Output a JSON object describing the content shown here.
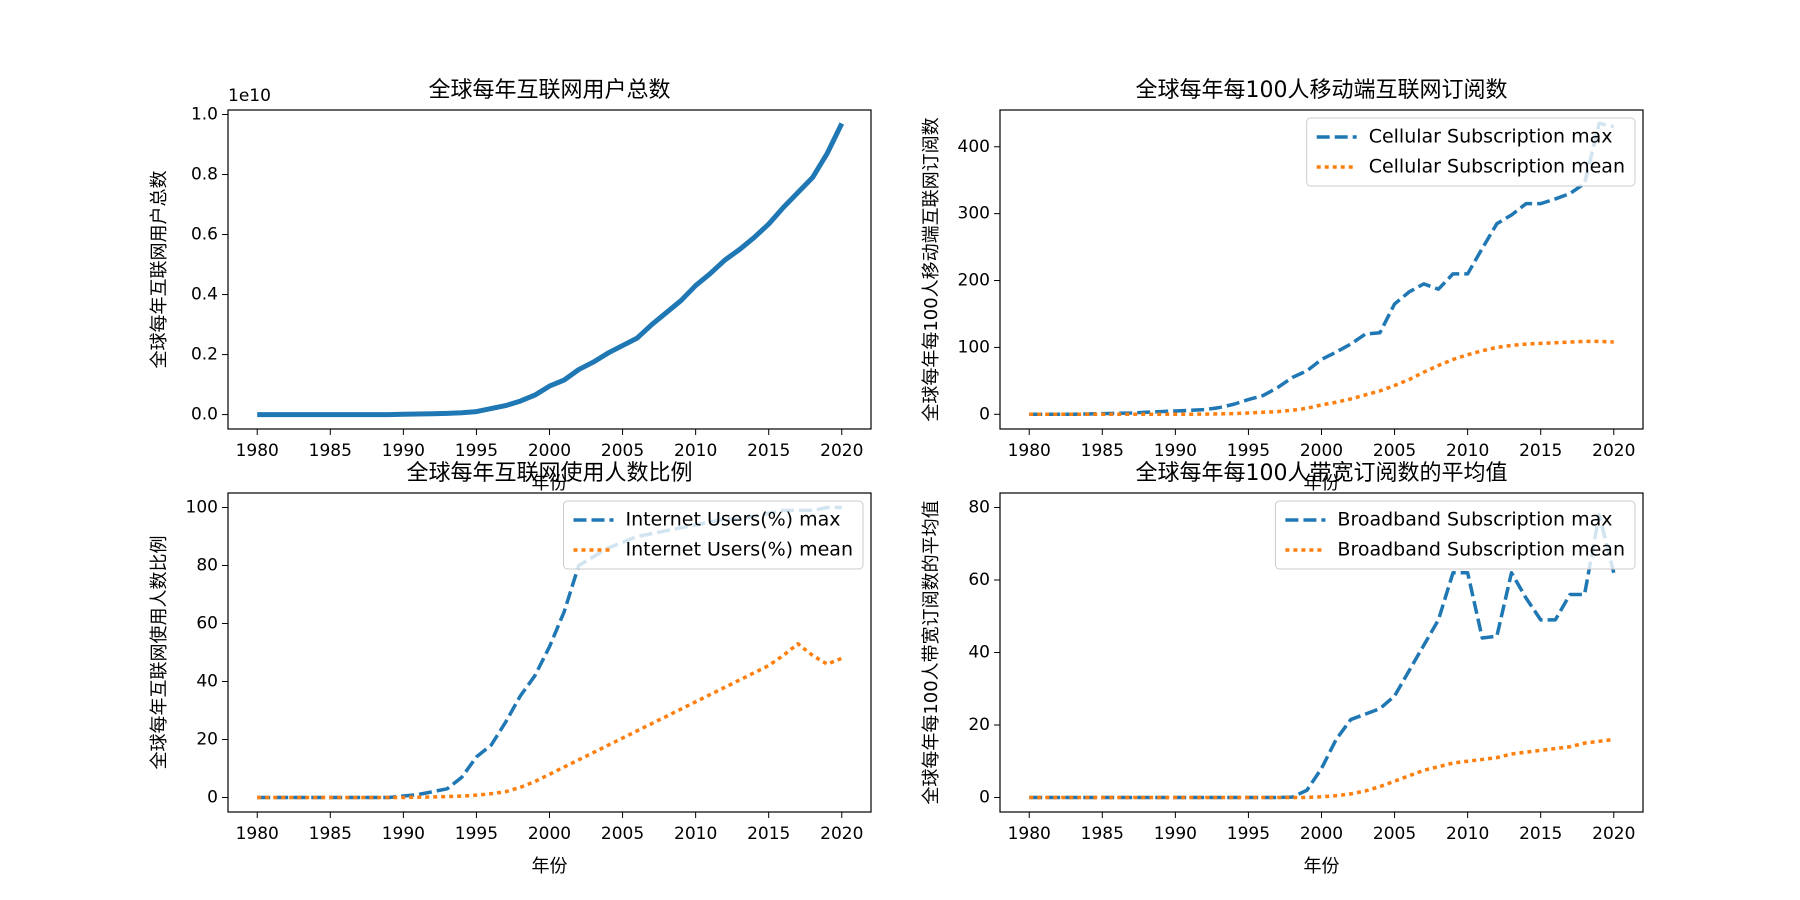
{
  "chart_data": [
    {
      "type": "line",
      "title": "全球每年互联网用户总数",
      "ylabel": "全球每年互联网用户总数",
      "xlabel": "年份",
      "offset_label": "1e10",
      "x": [
        1980,
        1981,
        1982,
        1983,
        1984,
        1985,
        1986,
        1987,
        1988,
        1989,
        1990,
        1991,
        1992,
        1993,
        1994,
        1995,
        1996,
        1997,
        1998,
        1999,
        2000,
        2001,
        2002,
        2003,
        2004,
        2005,
        2006,
        2007,
        2008,
        2009,
        2010,
        2011,
        2012,
        2013,
        2014,
        2015,
        2016,
        2017,
        2018,
        2019,
        2020
      ],
      "series": [
        {
          "color": "#1f77b4",
          "style": "solid",
          "values": [
            0,
            0,
            0,
            0,
            0,
            0,
            0,
            0,
            0,
            0,
            0.001,
            0.002,
            0.003,
            0.004,
            0.006,
            0.01,
            0.02,
            0.03,
            0.045,
            0.065,
            0.095,
            0.115,
            0.15,
            0.175,
            0.205,
            0.23,
            0.255,
            0.3,
            0.34,
            0.38,
            0.43,
            0.47,
            0.515,
            0.55,
            0.59,
            0.635,
            0.69,
            0.74,
            0.79,
            0.87,
            0.97
          ]
        }
      ],
      "xlim": [
        1978,
        2022
      ],
      "xticks": [
        1980,
        1985,
        1990,
        1995,
        2000,
        2005,
        2010,
        2015,
        2020
      ],
      "ylim": [
        -0.048,
        1.015
      ],
      "yticks": [
        {
          "value": 0,
          "label": "0.0"
        },
        0.2,
        0.4,
        0.6,
        0.8,
        {
          "value": 1,
          "label": "1.0"
        }
      ]
    },
    {
      "type": "line",
      "title": "全球每年每100人移动端互联网订阅数",
      "ylabel": "全球每年每100人移动端互联网订阅数",
      "xlabel": "年份",
      "legend": "upper right",
      "x": [
        1980,
        1981,
        1982,
        1983,
        1984,
        1985,
        1986,
        1987,
        1988,
        1989,
        1990,
        1991,
        1992,
        1993,
        1994,
        1995,
        1996,
        1997,
        1998,
        1999,
        2000,
        2001,
        2002,
        2003,
        2004,
        2005,
        2006,
        2007,
        2008,
        2009,
        2010,
        2011,
        2012,
        2013,
        2014,
        2015,
        2016,
        2017,
        2018,
        2019,
        2020
      ],
      "series": [
        {
          "name": "Cellular Subscription max",
          "color": "#1f77b4",
          "style": "dashed",
          "values": [
            0,
            0,
            0,
            0,
            0.5,
            1,
            1.5,
            2,
            3,
            4,
            5,
            6,
            7,
            10,
            15,
            22,
            28,
            40,
            55,
            65,
            82,
            93,
            105,
            120,
            122,
            165,
            183,
            195,
            187,
            210,
            210,
            248,
            285,
            298,
            315,
            315,
            322,
            330,
            345,
            435,
            430
          ]
        },
        {
          "name": "Cellular Subscription mean",
          "color": "#ff7f0e",
          "style": "dotted",
          "values": [
            0,
            0,
            0,
            0,
            0,
            0,
            0,
            0,
            0,
            0,
            0,
            0.1,
            0.3,
            0.6,
            1,
            2,
            3,
            4,
            6,
            9,
            14,
            18,
            23,
            29,
            35,
            43,
            52,
            63,
            73,
            82,
            89,
            95,
            100,
            103,
            105,
            106,
            107,
            108,
            109,
            109,
            108
          ]
        }
      ],
      "xlim": [
        1978,
        2022
      ],
      "xticks": [
        1980,
        1985,
        1990,
        1995,
        2000,
        2005,
        2010,
        2015,
        2020
      ],
      "ylim": [
        -22,
        455
      ],
      "yticks": [
        0,
        100,
        200,
        300,
        400
      ]
    },
    {
      "type": "line",
      "title": "全球每年互联网使用人数比例",
      "ylabel": "全球每年互联网使用人数比例",
      "xlabel": "年份",
      "legend": "upper right",
      "x": [
        1980,
        1981,
        1982,
        1983,
        1984,
        1985,
        1986,
        1987,
        1988,
        1989,
        1990,
        1991,
        1992,
        1993,
        1994,
        1995,
        1996,
        1997,
        1998,
        1999,
        2000,
        2001,
        2002,
        2003,
        2004,
        2005,
        2006,
        2007,
        2008,
        2009,
        2010,
        2011,
        2012,
        2013,
        2014,
        2015,
        2016,
        2017,
        2018,
        2019,
        2020
      ],
      "series": [
        {
          "name": "Internet Users(%) max",
          "color": "#1f77b4",
          "style": "dashed",
          "values": [
            0,
            0,
            0,
            0,
            0,
            0,
            0,
            0,
            0,
            0,
            0.5,
            1,
            2,
            3,
            7,
            14,
            18,
            26,
            35,
            42,
            52,
            64,
            80,
            83,
            86,
            88,
            90,
            91,
            92,
            93,
            94,
            95,
            96,
            96,
            97,
            98,
            99,
            99,
            99,
            100,
            100
          ]
        },
        {
          "name": "Internet Users(%) mean",
          "color": "#ff7f0e",
          "style": "dotted",
          "values": [
            0,
            0,
            0,
            0,
            0,
            0,
            0,
            0,
            0,
            0,
            0,
            0.1,
            0.2,
            0.3,
            0.5,
            0.8,
            1.3,
            2,
            3.5,
            5.5,
            8,
            10.5,
            13,
            15.5,
            18,
            20.5,
            23,
            25.5,
            28,
            30.5,
            33,
            35.5,
            38,
            40.5,
            43,
            45.5,
            49,
            53,
            49,
            46,
            48
          ]
        }
      ],
      "xlim": [
        1978,
        2022
      ],
      "xticks": [
        1980,
        1985,
        1990,
        1995,
        2000,
        2005,
        2010,
        2015,
        2020
      ],
      "ylim": [
        -5,
        105
      ],
      "yticks": [
        0,
        20,
        40,
        60,
        80,
        100
      ]
    },
    {
      "type": "line",
      "title": "全球每年每100人带宽订阅数的平均值",
      "ylabel": "全球每年每100人带宽订阅数的平均值",
      "xlabel": "年份",
      "legend": "upper right",
      "x": [
        1980,
        1981,
        1982,
        1983,
        1984,
        1985,
        1986,
        1987,
        1988,
        1989,
        1990,
        1991,
        1992,
        1993,
        1994,
        1995,
        1996,
        1997,
        1998,
        1999,
        2000,
        2001,
        2002,
        2003,
        2004,
        2005,
        2006,
        2007,
        2008,
        2009,
        2010,
        2011,
        2012,
        2013,
        2014,
        2015,
        2016,
        2017,
        2018,
        2019,
        2020
      ],
      "series": [
        {
          "name": "Broadband Subscription max",
          "color": "#1f77b4",
          "style": "dashed",
          "values": [
            0,
            0,
            0,
            0,
            0,
            0,
            0,
            0,
            0,
            0,
            0,
            0,
            0,
            0,
            0,
            0,
            0,
            0,
            0.1,
            2,
            8,
            16,
            21.5,
            23,
            24.5,
            28,
            35,
            42,
            49,
            62,
            62,
            44,
            44.5,
            62,
            55,
            49,
            49,
            56,
            56,
            78,
            62
          ]
        },
        {
          "name": "Broadband Subscription mean",
          "color": "#ff7f0e",
          "style": "dotted",
          "values": [
            0,
            0,
            0,
            0,
            0,
            0,
            0,
            0,
            0,
            0,
            0,
            0,
            0,
            0,
            0,
            0,
            0,
            0,
            0,
            0,
            0.2,
            0.5,
            1,
            1.8,
            3,
            4.5,
            6,
            7.5,
            8.5,
            9.5,
            10,
            10.5,
            11,
            12,
            12.5,
            13,
            13.5,
            14,
            15,
            15.5,
            16
          ]
        }
      ],
      "xlim": [
        1978,
        2022
      ],
      "xticks": [
        1980,
        1985,
        1990,
        1995,
        2000,
        2005,
        2010,
        2015,
        2020
      ],
      "ylim": [
        -4,
        84
      ],
      "yticks": [
        0,
        20,
        40,
        60,
        80
      ]
    }
  ]
}
